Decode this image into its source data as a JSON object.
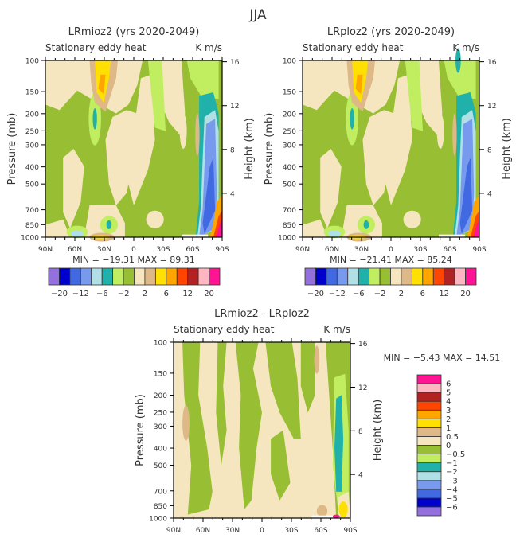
{
  "figure_title": "JJA",
  "palette": [
    "#9370DB",
    "#0000CD",
    "#4169E1",
    "#7799EE",
    "#B0E0E6",
    "#20B2AA",
    "#C0EE60",
    "#98BE34",
    "#F5E6C0",
    "#DEB887",
    "#FFE000",
    "#FFA500",
    "#FF4500",
    "#B22222",
    "#FFB6C1",
    "#FF1493"
  ],
  "chart_data": [
    {
      "type": "heatmap",
      "title": "LRmioz2 (yrs 2020-2049)",
      "subtitle_left": "Stationary eddy heat",
      "subtitle_right": "K m/s",
      "xlabel": "",
      "ylabel": "Pressure (mb)",
      "ylabel_right": "Height (km)",
      "x_ticks": [
        "90N",
        "60N",
        "30N",
        "0",
        "30S",
        "60S",
        "90S"
      ],
      "y_ticks": [
        "100",
        "150",
        "200",
        "250",
        "300",
        "400",
        "500",
        "700",
        "850",
        "1000"
      ],
      "y_ticks_right": [
        "16",
        "12",
        "8",
        "4"
      ],
      "stats": "MIN = -19.31   MAX = 89.31",
      "colorbar_orientation": "horizontal",
      "colorbar_labels": [
        "-20",
        "-12",
        "-6",
        "-2",
        "2",
        "6",
        "12",
        "20"
      ],
      "colorbar_levels": [
        -20,
        -16,
        -12,
        -8,
        -6,
        -4,
        -2,
        0,
        2,
        4,
        6,
        8,
        12,
        16,
        20
      ],
      "min": -19.31,
      "max": 89.31
    },
    {
      "type": "heatmap",
      "title": "LRploz2 (yrs 2020-2049)",
      "subtitle_left": "Stationary eddy heat",
      "subtitle_right": "K m/s",
      "xlabel": "",
      "ylabel": "Pressure (mb)",
      "ylabel_right": "Height (km)",
      "x_ticks": [
        "90N",
        "60N",
        "30N",
        "0",
        "30S",
        "60S",
        "90S"
      ],
      "y_ticks": [
        "100",
        "150",
        "200",
        "250",
        "300",
        "400",
        "500",
        "700",
        "850",
        "1000"
      ],
      "y_ticks_right": [
        "16",
        "12",
        "8",
        "4"
      ],
      "stats": "MIN = -21.41   MAX = 85.24",
      "colorbar_orientation": "horizontal",
      "colorbar_labels": [
        "-20",
        "-12",
        "-6",
        "-2",
        "2",
        "6",
        "12",
        "20"
      ],
      "colorbar_levels": [
        -20,
        -16,
        -12,
        -8,
        -6,
        -4,
        -2,
        0,
        2,
        4,
        6,
        8,
        12,
        16,
        20
      ],
      "min": -21.41,
      "max": 85.24
    },
    {
      "type": "heatmap",
      "title": "LRmioz2 - LRploz2",
      "subtitle_left": "Stationary eddy heat",
      "subtitle_right": "K m/s",
      "xlabel": "",
      "ylabel": "Pressure (mb)",
      "ylabel_right": "Height (km)",
      "x_ticks": [
        "90N",
        "60N",
        "30N",
        "0",
        "30S",
        "60S",
        "90S"
      ],
      "y_ticks": [
        "100",
        "150",
        "200",
        "250",
        "300",
        "400",
        "500",
        "700",
        "850",
        "1000"
      ],
      "y_ticks_right": [
        "16",
        "12",
        "8",
        "4"
      ],
      "stats": "MIN =  -5.43   MAX =  14.51",
      "colorbar_orientation": "vertical",
      "colorbar_labels": [
        "6",
        "5",
        "4",
        "3",
        "2",
        "1",
        "0.5",
        "0",
        "-0.5",
        "-1",
        "-2",
        "-3",
        "-4",
        "-5",
        "-6"
      ],
      "colorbar_levels": [
        -6,
        -5,
        -4,
        -3,
        -2,
        -1,
        -0.5,
        0,
        0.5,
        1,
        2,
        3,
        4,
        5,
        6
      ],
      "min": -5.43,
      "max": 14.51
    }
  ]
}
